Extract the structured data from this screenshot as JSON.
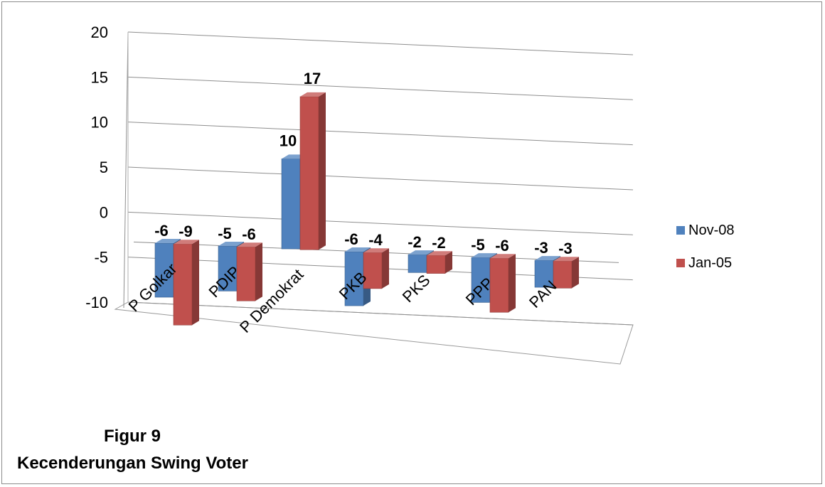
{
  "caption": {
    "figure_label": "Figur 9",
    "title": "Kecenderungan Swing Voter"
  },
  "chart_data": {
    "type": "bar",
    "style": "3d-clustered-column",
    "categories": [
      "P Golkar",
      "PDIP",
      "P Demokrat",
      "PKB",
      "PKS",
      "PPP",
      "PAN"
    ],
    "series": [
      {
        "name": "Nov-08",
        "color": "#4f81bd",
        "values": [
          -6,
          -5,
          10,
          -6,
          -2,
          -5,
          -3
        ]
      },
      {
        "name": "Jan-05",
        "color": "#c0504d",
        "values": [
          -9,
          -6,
          17,
          -4,
          -2,
          -6,
          -3
        ]
      }
    ],
    "y_ticks": [
      20,
      15,
      10,
      5,
      0,
      -5,
      -10
    ],
    "ylim": [
      -10,
      20
    ],
    "grid": true,
    "legend": "right",
    "data_labels": true
  }
}
